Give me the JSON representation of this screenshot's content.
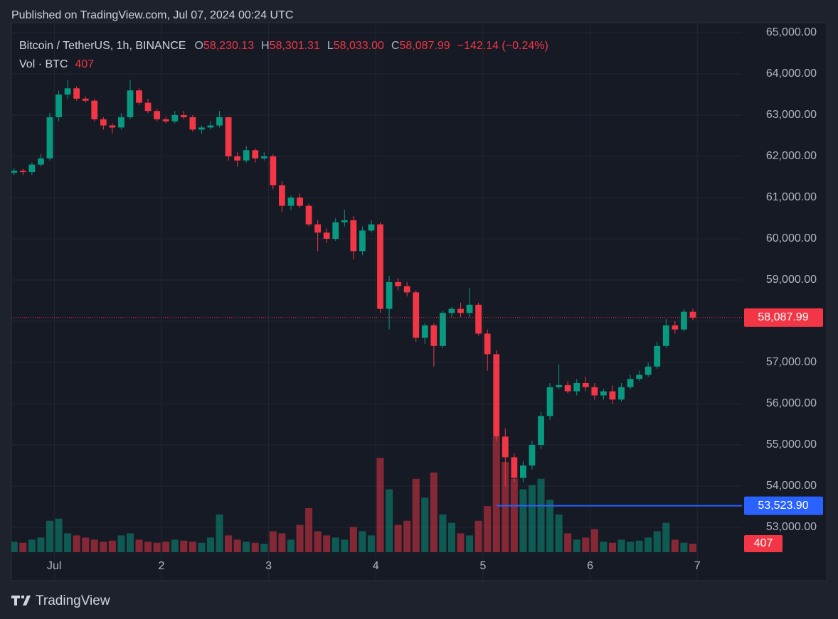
{
  "chart_data": {
    "type": "candlestick",
    "published": "Published on TradingView.com, Jul 07, 2024 00:24 UTC",
    "brand": "TradingView",
    "title": "Bitcoin / TetherUS, 1h, BINANCE",
    "ohlc_letters": [
      "O",
      "H",
      "L",
      "C"
    ],
    "ohlc_labels": [
      "58,230.13",
      "58,301.31",
      "58,033.00",
      "58,087.99"
    ],
    "change_label": "−142.14 (−0.24%)",
    "volume_title": "Vol · BTC",
    "up_color": "#089981",
    "down_color": "#f23645",
    "grid": true,
    "xlim": [
      -9.6,
      154
    ],
    "xticks": [
      {
        "value": 0,
        "label": "Jul"
      },
      {
        "value": 24,
        "label": "2"
      },
      {
        "value": 48,
        "label": "3"
      },
      {
        "value": 72,
        "label": "4"
      },
      {
        "value": 96,
        "label": "5"
      },
      {
        "value": 120,
        "label": "6"
      },
      {
        "value": 144,
        "label": "7"
      }
    ],
    "ylim": [
      51707,
      65276
    ],
    "yticks": [
      {
        "value": 53000,
        "label": "53,000.00"
      },
      {
        "value": 54000,
        "label": "54,000.00"
      },
      {
        "value": 55000,
        "label": "55,000.00"
      },
      {
        "value": 56000,
        "label": "56,000.00"
      },
      {
        "value": 57000,
        "label": "57,000.00"
      },
      {
        "value": 58000,
        "label": "58,000.00"
      },
      {
        "value": 59000,
        "label": "59,000.00"
      },
      {
        "value": 60000,
        "label": "60,000.00"
      },
      {
        "value": 61000,
        "label": "61,000.00"
      },
      {
        "value": 62000,
        "label": "62,000.00"
      },
      {
        "value": 63000,
        "label": "63,000.00"
      },
      {
        "value": 64000,
        "label": "64,000.00"
      },
      {
        "value": 65000,
        "label": "65,000.00"
      }
    ],
    "vlim": [
      0,
      10000
    ],
    "last_price": {
      "value": 58087.99,
      "label": "58,087.99"
    },
    "hline": {
      "value": 53523.9,
      "label": "53,523.90",
      "color": "#2962ff",
      "from_x": 99
    },
    "x": [
      -9,
      -7,
      -5,
      -3,
      -1,
      1,
      3,
      5,
      7,
      9,
      11,
      13,
      15,
      17,
      19,
      21,
      23,
      25,
      27,
      29,
      31,
      33,
      35,
      37,
      39,
      41,
      43,
      45,
      47,
      49,
      51,
      53,
      55,
      57,
      59,
      61,
      63,
      65,
      67,
      69,
      71,
      73,
      75,
      77,
      79,
      81,
      83,
      85,
      87,
      89,
      91,
      93,
      95,
      97,
      99,
      101,
      103,
      105,
      107,
      109,
      111,
      113,
      115,
      117,
      119,
      121,
      123,
      125,
      127,
      129,
      131,
      133,
      135,
      137,
      139,
      141,
      143
    ],
    "open": [
      61600,
      61650,
      61620,
      61800,
      61950,
      62950,
      63500,
      63650,
      63400,
      63350,
      62900,
      62750,
      62700,
      62950,
      63600,
      63300,
      63100,
      62900,
      62850,
      63000,
      62950,
      62650,
      62700,
      62750,
      62950,
      62000,
      61900,
      62150,
      61950,
      62000,
      61300,
      60800,
      61000,
      60800,
      60350,
      60150,
      60000,
      60400,
      60450,
      59700,
      60200,
      60350,
      58300,
      58950,
      58850,
      58700,
      57600,
      57900,
      57400,
      58200,
      58300,
      58200,
      58400,
      57700,
      57200,
      55200,
      54700,
      54200,
      54500,
      55000,
      55700,
      56400,
      56450,
      56300,
      56500,
      56400,
      56200,
      56300,
      56100,
      56400,
      56600,
      56700,
      56900,
      57400,
      57900,
      57800,
      58230.13
    ],
    "high": [
      61720,
      61700,
      61850,
      62050,
      63050,
      63600,
      63850,
      63700,
      63450,
      63400,
      62950,
      62800,
      63050,
      63850,
      63650,
      63400,
      63150,
      62950,
      63100,
      63100,
      63000,
      62750,
      62850,
      63100,
      62950,
      62100,
      62250,
      62200,
      62100,
      62050,
      61400,
      61050,
      61100,
      60850,
      60450,
      60250,
      60500,
      60700,
      60550,
      60300,
      60450,
      60400,
      59100,
      59050,
      58950,
      58750,
      57950,
      57950,
      58250,
      58350,
      58450,
      58800,
      58450,
      57800,
      57300,
      55400,
      54800,
      54600,
      55100,
      55800,
      56500,
      56950,
      56550,
      56600,
      56650,
      56500,
      56350,
      56450,
      56500,
      56700,
      56800,
      57000,
      57500,
      58050,
      58000,
      58300,
      58301.31
    ],
    "low": [
      61550,
      61550,
      61550,
      61750,
      61900,
      62850,
      63400,
      63350,
      63300,
      62850,
      62650,
      62550,
      62650,
      62900,
      63250,
      63050,
      62850,
      62800,
      62800,
      62900,
      62600,
      62550,
      62650,
      62700,
      61900,
      61750,
      61850,
      61850,
      61900,
      61200,
      60650,
      60700,
      60750,
      60300,
      59700,
      59900,
      59950,
      60300,
      59500,
      59600,
      60150,
      58200,
      57800,
      58750,
      58600,
      57500,
      57450,
      56900,
      57350,
      58100,
      58100,
      58100,
      57650,
      56800,
      55100,
      54000,
      54100,
      54100,
      54400,
      54900,
      55600,
      56350,
      56250,
      56200,
      56300,
      56100,
      56100,
      56000,
      56050,
      56350,
      56550,
      56650,
      56850,
      57350,
      57700,
      57750,
      58033
    ],
    "close": [
      61650,
      61620,
      61800,
      61950,
      62950,
      63500,
      63650,
      63400,
      63350,
      62900,
      62750,
      62700,
      62950,
      63600,
      63300,
      63100,
      62900,
      62850,
      63000,
      62950,
      62650,
      62700,
      62750,
      62950,
      62000,
      61900,
      62150,
      61950,
      62000,
      61300,
      60800,
      61000,
      60800,
      60350,
      60150,
      60000,
      60400,
      60450,
      59700,
      60200,
      60350,
      58300,
      58950,
      58850,
      58700,
      57600,
      57900,
      57400,
      58200,
      58300,
      58200,
      58400,
      57700,
      57200,
      55200,
      54700,
      54200,
      54500,
      55000,
      55700,
      56400,
      56450,
      56300,
      56500,
      56400,
      56200,
      56300,
      56100,
      56400,
      56600,
      56700,
      56900,
      57400,
      57900,
      57800,
      58230.13,
      58087.99
    ],
    "volume": [
      500,
      450,
      600,
      700,
      1500,
      1600,
      900,
      800,
      700,
      600,
      500,
      550,
      800,
      900,
      600,
      500,
      450,
      500,
      600,
      550,
      500,
      450,
      700,
      1800,
      800,
      600,
      500,
      450,
      400,
      1000,
      900,
      600,
      1300,
      2100,
      1000,
      800,
      700,
      600,
      1200,
      1000,
      800,
      4500,
      3000,
      1300,
      1500,
      3500,
      2600,
      3800,
      1800,
      1400,
      900,
      800,
      1500,
      2200,
      5500,
      4300,
      3500,
      3000,
      3200,
      3500,
      2500,
      1800,
      900,
      600,
      700,
      1100,
      500,
      450,
      600,
      500,
      550,
      700,
      1000,
      1400,
      600,
      450,
      407
    ]
  }
}
